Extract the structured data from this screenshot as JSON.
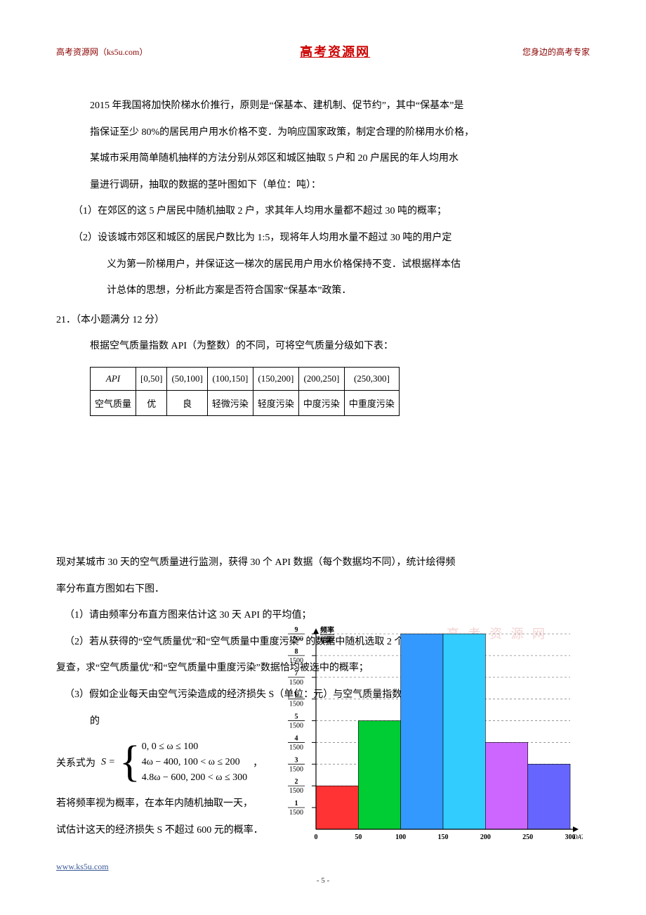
{
  "header": {
    "left": "高考资源网（ks5u.com）",
    "center": "高考资源网",
    "right": "您身边的高考专家"
  },
  "body": {
    "p1": "2015 年我国将加快阶梯水价推行，原则是“保基本、建机制、促节约”，其中“保基本”是",
    "p2": "指保证至少 80%的居民用户用水价格不变．为响应国家政策，制定合理的阶梯用水价格，",
    "p3": "某城市采用简单随机抽样的方法分别从郊区和城区抽取 5 户和 20 户居民的年人均用水",
    "p4": "量进行调研，抽取的数据的茎叶图如下（单位：吨）：",
    "p5": "（1）在郊区的这 5 户居民中随机抽取 2 户，求其年人均用水量都不超过 30 吨的概率；",
    "p6": "（2）设该城市郊区和城区的居民户数比为 1:5，现将年人均用水量不超过 30 吨的用户定",
    "p6b": "义为第一阶梯用户，并保证这一梯次的居民用户用水价格保持不变．试根据样本估",
    "p6c": "计总体的思想，分析此方案是否符合国家“保基本”政策．",
    "q21_title": "21．（本小题满分 12 分）",
    "q21_p1": "根据空气质量指数 API（为整数）的不同，可将空气质量分级如下表：",
    "q21_p2": "现对某城市 30 天的空气质量进行监测，获得 30 个 API 数据（每个数据均不同），统计绘得频",
    "q21_p2b": "率分布直方图如右下图．",
    "q21_sub1": "（1）请由频率分布直方图来估计这 30 天 API 的平均值；",
    "q21_sub2": "（2）若从获得的“空气质量优”和“空气质量中重度污染” 的数据中随机选取 2 个数据进行",
    "q21_sub2b": "复查，求“空气质量优”和“空气质量中重度污染”数据恰均被选中的概率；",
    "q21_sub3": "（3）假如企业每天由空气污染造成的经济损失 S（单位：元）与空气质量指数 API （记为 ω）",
    "q21_sub3b": "的",
    "formula_lhs": "关系式为",
    "formula_S": "S =",
    "piece1": "0, 0 ≤ ω ≤ 100",
    "piece2": "4ω − 400, 100 < ω ≤ 200",
    "piece3": "4.8ω − 600, 200 < ω ≤ 300",
    "formula_comma": " ，",
    "q21_sub3c": "若将频率视为概率，在本年内随机抽取一天，",
    "q21_sub3d": "试估计这天的经济损失 S 不超过 600 元的概率．",
    "watermark": "高 考 资 源 网"
  },
  "api_table": {
    "row1": [
      "API",
      "[0,50]",
      "(50,100]",
      "(100,150]",
      "(150,200]",
      "(200,250]",
      "(250,300]"
    ],
    "row2": [
      "空气质量",
      "优",
      "良",
      "轻微污染",
      "轻度污染",
      "中度污染",
      "中重度污染"
    ]
  },
  "chart": {
    "type": "histogram",
    "ylabel_top": "频率",
    "ylabel_bot": "组距",
    "y_denominator": 1500,
    "y_ticks": [
      1,
      2,
      3,
      4,
      5,
      6,
      7,
      8,
      9
    ],
    "x_ticks": [
      0,
      50,
      100,
      150,
      200,
      250,
      300
    ],
    "xlabel": "DAT",
    "bars": [
      {
        "x0": 0,
        "x1": 50,
        "h": 2,
        "fill": "#ff3333"
      },
      {
        "x0": 50,
        "x1": 100,
        "h": 5,
        "fill": "#00cc33"
      },
      {
        "x0": 100,
        "x1": 150,
        "h": 9,
        "fill": "#3399ff"
      },
      {
        "x0": 150,
        "x1": 200,
        "h": 9,
        "fill": "#33ccff"
      },
      {
        "x0": 200,
        "x1": 250,
        "h": 4,
        "fill": "#cc66ff"
      },
      {
        "x0": 250,
        "x1": 300,
        "h": 3,
        "fill": "#6666ff"
      }
    ],
    "axis_color": "#000000",
    "grid_color": "#888888",
    "bg": "#ffffff"
  },
  "footer": {
    "url": "www.ks5u.com",
    "page": "- 5 -"
  }
}
